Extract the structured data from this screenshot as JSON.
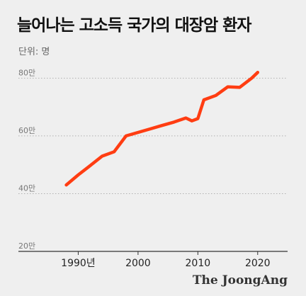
{
  "title": "늘어나는 고소득 국가의 대장암 환자",
  "unit_label": "단위: 명",
  "brand": "The JoongAng",
  "colors": {
    "line": "#ff3d12",
    "grid": "#b0b0b0",
    "axis": "#333333"
  },
  "chart_data": {
    "type": "line",
    "title": "늘어나는 고소득 국가의 대장암 환자",
    "ylabel": "단위: 명",
    "xlim": [
      1980,
      2025
    ],
    "ylim": [
      200000,
      850000
    ],
    "y_ticks": [
      {
        "value": 200000,
        "label": "20만"
      },
      {
        "value": 400000,
        "label": "40만"
      },
      {
        "value": 600000,
        "label": "60만"
      },
      {
        "value": 800000,
        "label": "80만"
      }
    ],
    "x_ticks": [
      {
        "value": 1990,
        "label": "1990년"
      },
      {
        "value": 2000,
        "label": "2000"
      },
      {
        "value": 2010,
        "label": "2010"
      },
      {
        "value": 2020,
        "label": "2020"
      }
    ],
    "grid": true,
    "series": [
      {
        "x": [
          1988,
          1990,
          1992,
          1994,
          1996,
          1998,
          2000,
          2002,
          2004,
          2006,
          2008,
          2009,
          2010,
          2011,
          2013,
          2015,
          2017,
          2019,
          2020
        ],
        "values": [
          430000,
          465000,
          497000,
          530000,
          545000,
          600000,
          612000,
          624000,
          636000,
          648000,
          662000,
          652000,
          660000,
          725000,
          740000,
          770000,
          768000,
          800000,
          820000
        ]
      }
    ]
  }
}
